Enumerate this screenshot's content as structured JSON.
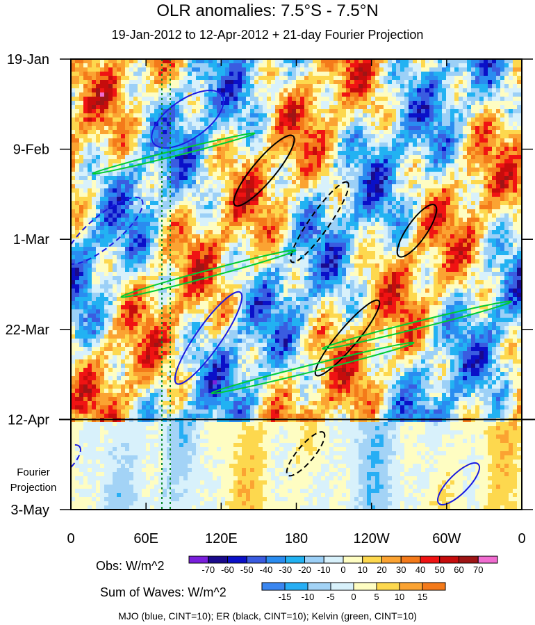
{
  "title": "OLR anomalies: 7.5°S - 7.5°N",
  "subtitle": "19-Jan-2012 to 12-Apr-2012 + 21-day Fourier Projection",
  "chart_data": {
    "type": "heatmap",
    "description_axes": "Time-longitude Hovmoller diagram",
    "x_ticks": [
      {
        "label": "0",
        "lon": 0
      },
      {
        "label": "60E",
        "lon": 60
      },
      {
        "label": "120E",
        "lon": 120
      },
      {
        "label": "180",
        "lon": 180
      },
      {
        "label": "120W",
        "lon": 240
      },
      {
        "label": "60W",
        "lon": 300
      },
      {
        "label": "0",
        "lon": 360
      }
    ],
    "xlim": [
      0,
      360
    ],
    "y_ticks": [
      {
        "label": "19-Jan",
        "day": 0
      },
      {
        "label": "9-Feb",
        "day": 21
      },
      {
        "label": "1-Mar",
        "day": 42
      },
      {
        "label": "22-Mar",
        "day": 63
      },
      {
        "label": "12-Apr",
        "day": 84
      },
      {
        "label": "3-May",
        "day": 105
      }
    ],
    "ylim_dates": [
      "19-Jan-2012",
      "3-May-2012"
    ],
    "projection_start": "12-Apr",
    "projection_label": [
      "Fourier",
      "Projection"
    ],
    "obs_colorbar": {
      "label": "Obs: W/m^2",
      "levels": [
        -70,
        -60,
        -50,
        -40,
        -30,
        -20,
        -10,
        0,
        10,
        20,
        30,
        40,
        50,
        60,
        70
      ],
      "colors": [
        "#7a1fdc",
        "#1a0a8c",
        "#0a10c8",
        "#3a5ce0",
        "#2a8cf0",
        "#22b2f2",
        "#9cd0f7",
        "#d8f1fb",
        "#fefdc2",
        "#fdd84e",
        "#fba332",
        "#f47a1a",
        "#f01313",
        "#c60c0c",
        "#9e1515",
        "#f06cd0"
      ]
    },
    "waves_colorbar": {
      "label": "Sum of Waves: W/m^2",
      "levels": [
        -15,
        -10,
        -5,
        0,
        5,
        10,
        15
      ],
      "colors": [
        "#3a86f0",
        "#27aef4",
        "#a3d3f6",
        "#d8f1fb",
        "#fefdc2",
        "#fdd84e",
        "#fba332",
        "#f47a1a"
      ]
    },
    "contours": "MJO (blue, CINT=10); ER (black, CINT=10); Kelvin (green, CINT=10)"
  }
}
